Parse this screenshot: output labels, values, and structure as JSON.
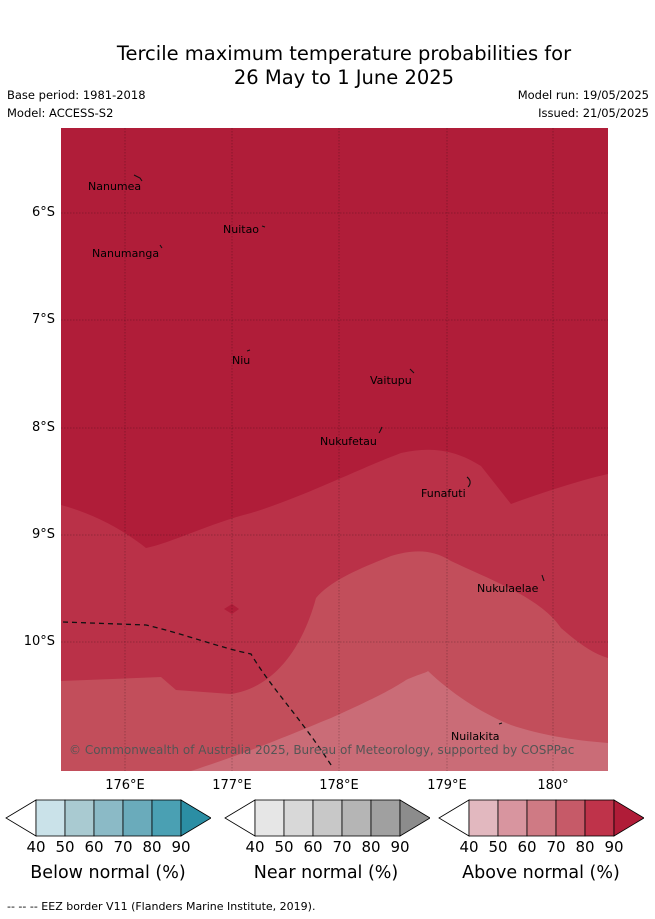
{
  "title_line1": "Tercile maximum temperature probabilities for",
  "title_line2": "26 May to 1 June 2025",
  "base_period": "Base period: 1981-2018",
  "model": "Model: ACCESS-S2",
  "model_run": "Model run: 19/05/2025",
  "issued": "Issued: 21/05/2025",
  "lat_labels": [
    "6°S",
    "7°S",
    "8°S",
    "9°S",
    "10°S"
  ],
  "lon_labels": [
    "176°E",
    "177°E",
    "178°E",
    "179°E",
    "180°"
  ],
  "places": {
    "nanumea": "Nanumea",
    "nuitao": "Nuitao",
    "nanumanga": "Nanumanga",
    "niu": "Niu",
    "vaitupu": "Vaitupu",
    "nukufetau": "Nukufetau",
    "funafuti": "Funafuti",
    "nukulaelae": "Nukulaelae",
    "nuilakita": "Nuilakita"
  },
  "copyright": "© Commonwealth of Australia 2025, Bureau of Meteorology, supported by COSPPac",
  "colorbars": [
    {
      "title": "Below normal (%)",
      "ticks": [
        "40",
        "50",
        "60",
        "70",
        "80",
        "90"
      ],
      "colors": [
        "#ffffff",
        "#cae2e9",
        "#a9cad1",
        "#8bbac6",
        "#6aabbb",
        "#4aa0b3",
        "#2b8ea4"
      ]
    },
    {
      "title": "Near normal (%)",
      "ticks": [
        "40",
        "50",
        "60",
        "70",
        "80",
        "90"
      ],
      "colors": [
        "#ffffff",
        "#e6e6e6",
        "#d8d8d8",
        "#c8c8c8",
        "#b5b5b5",
        "#a0a0a0",
        "#8c8c8c"
      ]
    },
    {
      "title": "Above normal (%)",
      "ticks": [
        "40",
        "50",
        "60",
        "70",
        "80",
        "90"
      ],
      "colors": [
        "#ffffff",
        "#e2b8bf",
        "#d8959f",
        "#cf7a84",
        "#c65a68",
        "#bf334a",
        "#b01c38"
      ]
    }
  ],
  "map_colors": {
    "above_90": "#b01d39",
    "above_80": "#ba3148",
    "above_70": "#c24e5b",
    "above_60": "#ca6c77"
  },
  "footnote": "--  --  -- EEZ border V11 (Flanders Marine Institute, 2019)."
}
